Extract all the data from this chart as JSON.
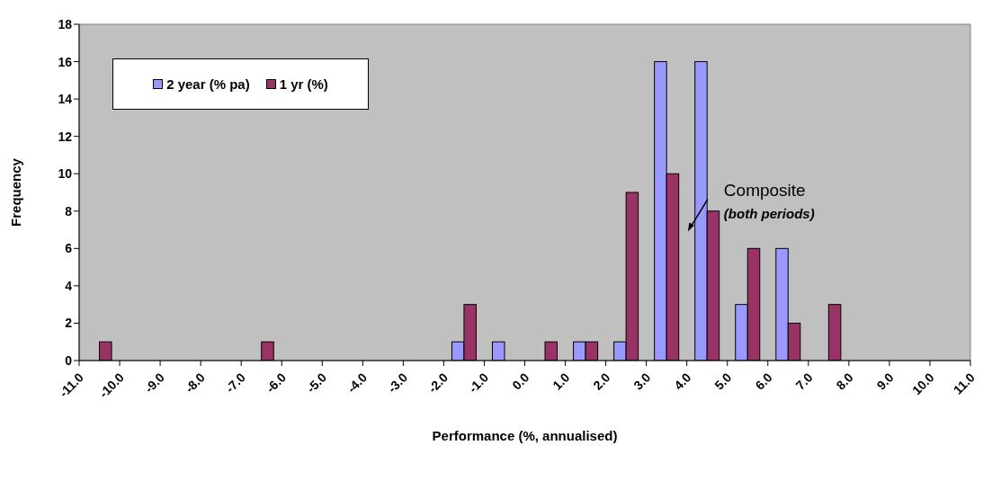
{
  "chart_data": {
    "type": "histogram",
    "xlabel": "Performance (%, annualised)",
    "ylabel": "Frequency",
    "bins": [
      -11,
      -10,
      -9,
      -8,
      -7,
      -6,
      -5,
      -4,
      -3,
      -2,
      -1,
      0,
      1,
      2,
      3,
      4,
      5,
      6,
      7,
      8,
      9,
      10,
      11
    ],
    "series": [
      {
        "name": "2 year (% pa)",
        "color": "#9999ff",
        "values": [
          0,
          0,
          0,
          0,
          0,
          0,
          0,
          0,
          0,
          1,
          1,
          0,
          1,
          1,
          16,
          16,
          3,
          6,
          0,
          0,
          0,
          0
        ]
      },
      {
        "name": "1 yr (%)",
        "color": "#993366",
        "values": [
          1,
          0,
          0,
          0,
          1,
          0,
          0,
          0,
          0,
          3,
          0,
          1,
          1,
          9,
          10,
          8,
          6,
          2,
          3,
          0,
          0,
          0
        ]
      }
    ],
    "xlim": [
      -11,
      11
    ],
    "xticks": [
      {
        "value": -11,
        "label": "-11.0"
      },
      {
        "value": -10,
        "label": "-10.0"
      },
      {
        "value": -9,
        "label": "-9.0"
      },
      {
        "value": -8,
        "label": "-8.0"
      },
      {
        "value": -7,
        "label": "-7.0"
      },
      {
        "value": -6,
        "label": "-6.0"
      },
      {
        "value": -5,
        "label": "-5.0"
      },
      {
        "value": -4,
        "label": "-4.0"
      },
      {
        "value": -3,
        "label": "-3.0"
      },
      {
        "value": -2,
        "label": "-2.0"
      },
      {
        "value": -1,
        "label": "-1.0"
      },
      {
        "value": 0,
        "label": "0.0"
      },
      {
        "value": 1,
        "label": "1.0"
      },
      {
        "value": 2,
        "label": "2.0"
      },
      {
        "value": 3,
        "label": "3.0"
      },
      {
        "value": 4,
        "label": "4.0"
      },
      {
        "value": 5,
        "label": "5.0"
      },
      {
        "value": 6,
        "label": "6.0"
      },
      {
        "value": 7,
        "label": "7.0"
      },
      {
        "value": 8,
        "label": "8.0"
      },
      {
        "value": 9,
        "label": "9.0"
      },
      {
        "value": 10,
        "label": "10.0"
      },
      {
        "value": 11,
        "label": "11.0"
      }
    ],
    "ylim": [
      0,
      18
    ],
    "yticks": [
      0,
      2,
      4,
      6,
      8,
      10,
      12,
      14,
      16,
      18
    ],
    "grid": false,
    "legend": "top left",
    "annotations": [
      "Composite",
      "(both periods)"
    ]
  }
}
